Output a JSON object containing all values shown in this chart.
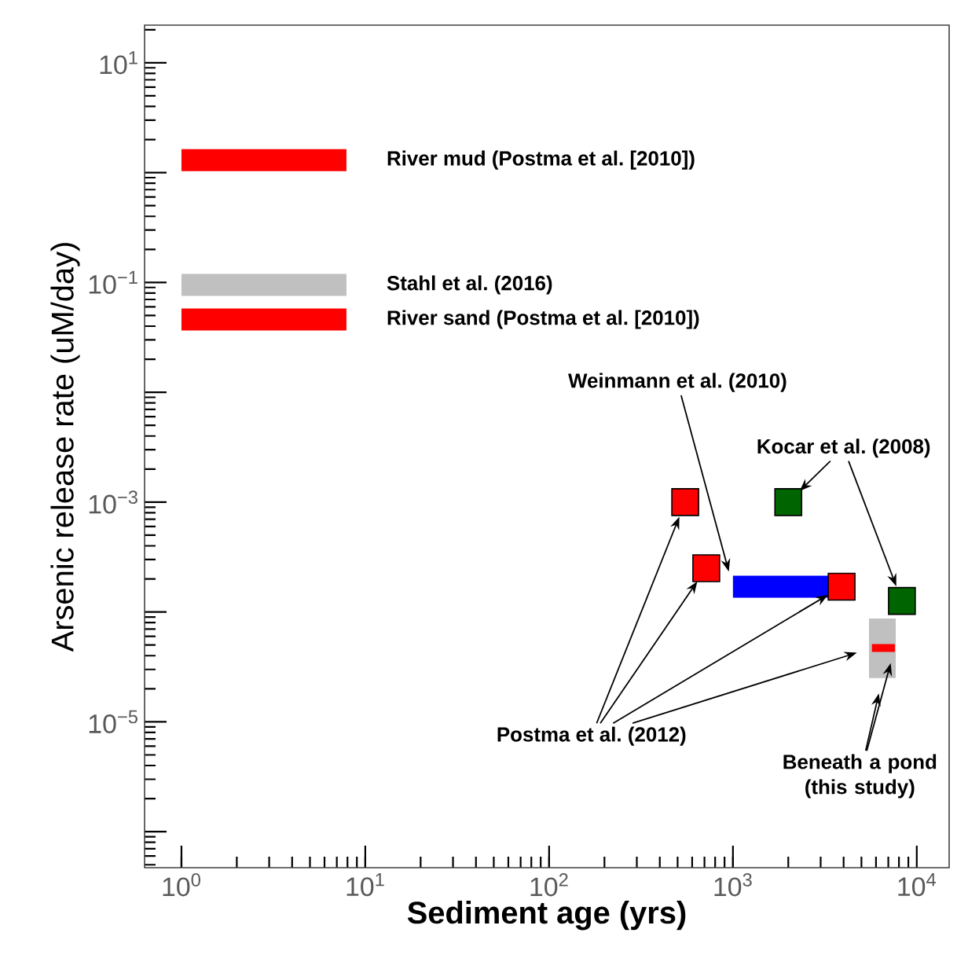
{
  "chart_data": {
    "type": "line",
    "xlabel": "Sediment age (yrs)",
    "ylabel": "Arsenic release rate (uM/day)",
    "log": "xy",
    "legend": false,
    "xlim": [
      0.63,
      15000
    ],
    "ylim": [
      4.7e-07,
      22
    ],
    "xticks": [
      {
        "value": 1,
        "label": "10$^{0}$"
      },
      {
        "value": 10,
        "label": "10$^{1}$"
      },
      {
        "value": 100,
        "label": "10$^{2}$"
      },
      {
        "value": 1000,
        "label": "10$^{3}$"
      },
      {
        "value": 10000,
        "label": "10$^{4}$"
      }
    ],
    "yticks": [
      {
        "value": 10,
        "label": "10$^{1}$"
      },
      {
        "value": 1,
        "label": null
      },
      {
        "value": 0.1,
        "label": "10$^{−1}$"
      },
      {
        "value": 0.01,
        "label": null
      },
      {
        "value": 0.001,
        "label": "10$^{−3}$"
      },
      {
        "value": 0.0001,
        "label": null
      },
      {
        "value": 1e-05,
        "label": "10$^{−5}$"
      },
      {
        "value": 1e-06,
        "label": null
      }
    ],
    "series": [
      {
        "name": "River mud (Postma et al. [2010])",
        "color": "#ff0000",
        "x": [
          1,
          7.9
        ],
        "values": [
          1.3,
          1.3
        ]
      },
      {
        "name": "Stahl et al. (2016)",
        "color": "#c0c0c0",
        "x": [
          1,
          7.9
        ],
        "values": [
          0.095,
          0.095
        ]
      },
      {
        "name": "River sand (Postma et al. [2010])",
        "color": "#ff0000",
        "x": [
          1,
          7.9
        ],
        "values": [
          0.046,
          0.046
        ]
      },
      {
        "name": "Weinmann et al. (2010)",
        "color": "#0000ff",
        "x": [
          1000,
          3300
        ],
        "values": [
          0.00017,
          0.00017
        ]
      },
      {
        "name": "Postma et al. (2012)",
        "type": "scatter",
        "marker": "square",
        "color": "#ff0000",
        "x": [
          550,
          716,
          3900
        ],
        "values": [
          0.001,
          0.00025,
          0.00017
        ]
      },
      {
        "name": "Kocar et al. (2008)",
        "type": "scatter",
        "marker": "square",
        "color": "#006400",
        "x": [
          2000,
          8300
        ],
        "values": [
          0.001,
          0.000126
        ]
      },
      {
        "name": "Beneath a pond (this study)",
        "color": "#c0c0c0",
        "x": [
          6500,
          6500
        ],
        "values": [
          2.5e-05,
          8.7e-05
        ]
      },
      {
        "color": "#ff0000",
        "x": [
          5700,
          7600
        ],
        "values": [
          4.7e-05,
          4.7e-05
        ]
      }
    ]
  }
}
